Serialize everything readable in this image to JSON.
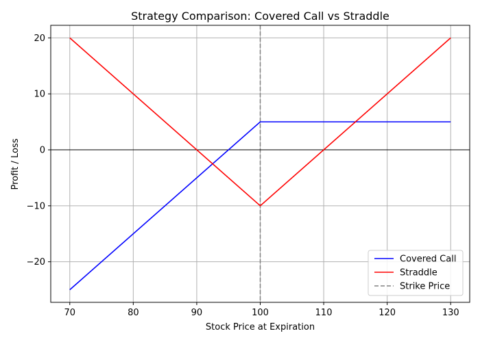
{
  "chart_data": {
    "type": "line",
    "title": "Strategy Comparison: Covered Call vs Straddle",
    "xlabel": "Stock Price at Expiration",
    "ylabel": "Profit / Loss",
    "xlim": [
      67,
      133
    ],
    "ylim": [
      -27.25,
      22.25
    ],
    "xticks": [
      70,
      80,
      90,
      100,
      110,
      120,
      130
    ],
    "yticks": [
      -20,
      -10,
      0,
      10,
      20
    ],
    "xtick_labels": [
      "70",
      "80",
      "90",
      "100",
      "110",
      "120",
      "130"
    ],
    "ytick_labels": [
      "−20",
      "−10",
      "0",
      "10",
      "20"
    ],
    "grid": true,
    "legend_position": "lower-right",
    "series": [
      {
        "name": "Covered Call",
        "color": "#0000ff",
        "style": "solid",
        "x": [
          70,
          100,
          130
        ],
        "y": [
          -25,
          5,
          5
        ]
      },
      {
        "name": "Straddle",
        "color": "#ff0000",
        "style": "solid",
        "x": [
          70,
          100,
          130
        ],
        "y": [
          20,
          -10,
          20
        ]
      }
    ],
    "reference_lines": [
      {
        "name": "Strike Price",
        "orientation": "vertical",
        "value": 100,
        "color": "#808080",
        "style": "dashed",
        "in_legend": true
      },
      {
        "name": "",
        "orientation": "horizontal",
        "value": 0,
        "color": "#000000",
        "style": "solid",
        "in_legend": false
      }
    ]
  }
}
